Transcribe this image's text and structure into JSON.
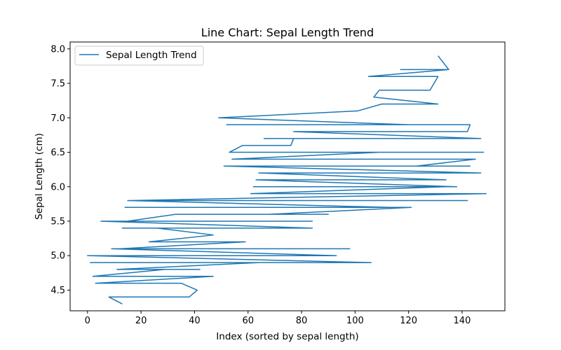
{
  "chart_data": {
    "type": "line",
    "title": "Line Chart: Sepal Length Trend",
    "xlabel": "Index (sorted by sepal length)",
    "ylabel": "Sepal Length (cm)",
    "xlim": [
      -6.5,
      156
    ],
    "ylim": [
      4.2,
      8.1
    ],
    "xticks": [
      0,
      20,
      40,
      60,
      80,
      100,
      120,
      140
    ],
    "yticks": [
      4.5,
      5.0,
      5.5,
      6.0,
      6.5,
      7.0,
      7.5,
      8.0
    ],
    "ytick_labels": [
      "4.5",
      "5.0",
      "5.5",
      "6.0",
      "6.5",
      "7.0",
      "7.5",
      "8.0"
    ],
    "grid": false,
    "legend_position": "top-left",
    "series": [
      {
        "name": "Sepal Length Trend",
        "color": "#1f77b4",
        "x": [
          13,
          8,
          38,
          41,
          35,
          18,
          3,
          47,
          2,
          29,
          42,
          11,
          64,
          1,
          106,
          0,
          78,
          4,
          93,
          9,
          98,
          12,
          59,
          23,
          47,
          26,
          29,
          13,
          84,
          5,
          84,
          15,
          33,
          90,
          68,
          121,
          14,
          113,
          15,
          142,
          16,
          149,
          61,
          134,
          62,
          138,
          63,
          128,
          134,
          64,
          68,
          147,
          51,
          143,
          123,
          145,
          54,
          109,
          148,
          53,
          58,
          76,
          77,
          66,
          147,
          77,
          142,
          143,
          52,
          120,
          49,
          101,
          110,
          131,
          107,
          109,
          128,
          131,
          105,
          135,
          117,
          135,
          131
        ],
        "y": [
          4.3,
          4.4,
          4.4,
          4.5,
          4.6,
          4.6,
          4.6,
          4.7,
          4.7,
          4.8,
          4.8,
          4.8,
          4.9,
          4.9,
          4.9,
          5.0,
          5.0,
          5.0,
          5.0,
          5.1,
          5.1,
          5.1,
          5.2,
          5.2,
          5.3,
          5.4,
          5.4,
          5.4,
          5.4,
          5.5,
          5.5,
          5.5,
          5.6,
          5.6,
          5.6,
          5.7,
          5.7,
          5.7,
          5.8,
          5.8,
          5.8,
          5.9,
          5.9,
          6.0,
          6.0,
          6.0,
          6.1,
          6.1,
          6.1,
          6.2,
          6.2,
          6.2,
          6.3,
          6.3,
          6.3,
          6.4,
          6.4,
          6.5,
          6.5,
          6.5,
          6.6,
          6.6,
          6.7,
          6.7,
          6.7,
          6.8,
          6.8,
          6.9,
          6.9,
          6.9,
          7.0,
          7.1,
          7.2,
          7.2,
          7.3,
          7.4,
          7.4,
          7.6,
          7.6,
          7.7,
          7.7,
          7.7,
          7.9
        ]
      }
    ]
  }
}
